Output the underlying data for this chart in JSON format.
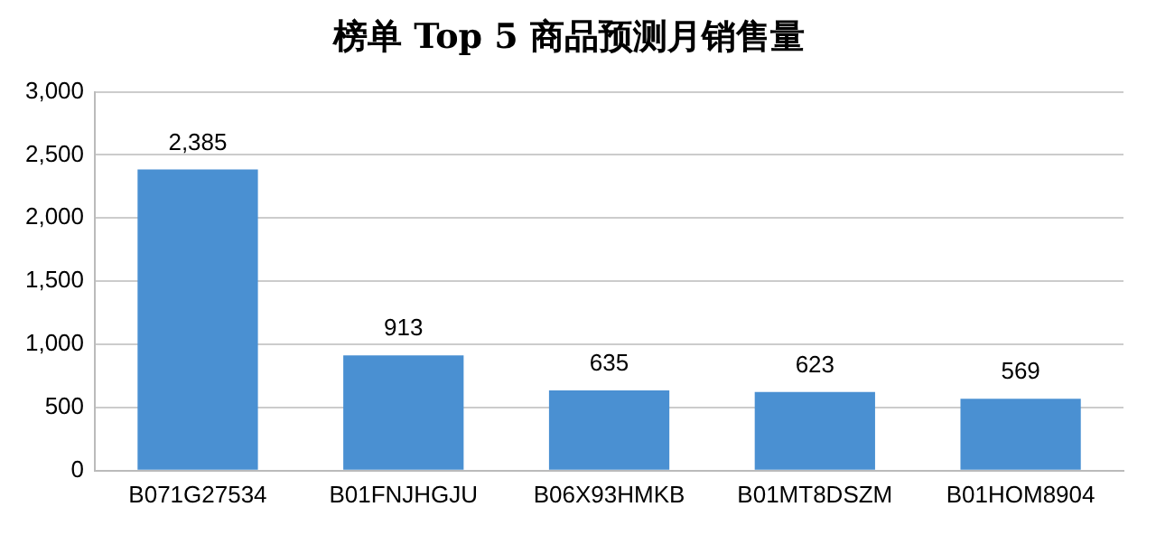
{
  "chart_data": {
    "type": "bar",
    "title": "榜单 Top 5 商品预测月销售量",
    "categories": [
      "B071G27534",
      "B01FNJHGJU",
      "B06X93HMKB",
      "B01MT8DSZM",
      "B01HOM8904"
    ],
    "values": [
      2385,
      913,
      635,
      623,
      569
    ],
    "value_labels": [
      "2,385",
      "913",
      "635",
      "623",
      "569"
    ],
    "color": "#4a90d2",
    "ylim": [
      0,
      3000
    ],
    "yticks": [
      0,
      500,
      {
        "value": 1000,
        "label": "1,000"
      },
      {
        "value": 1500,
        "label": "1,500"
      },
      {
        "value": 2000,
        "label": "2,000"
      },
      {
        "value": 2500,
        "label": "2,500"
      },
      {
        "value": 3000,
        "label": "3,000"
      }
    ],
    "grid": "y"
  }
}
